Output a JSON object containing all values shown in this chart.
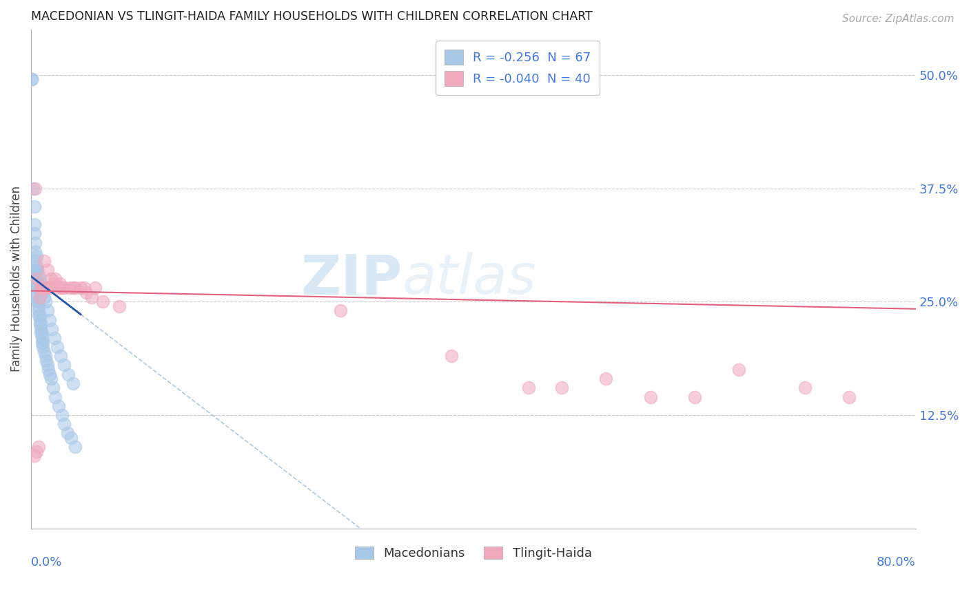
{
  "title": "MACEDONIAN VS TLINGIT-HAIDA FAMILY HOUSEHOLDS WITH CHILDREN CORRELATION CHART",
  "source": "Source: ZipAtlas.com",
  "ylabel": "Family Households with Children",
  "ytick_labels": [
    "12.5%",
    "25.0%",
    "37.5%",
    "50.0%"
  ],
  "ytick_values": [
    0.125,
    0.25,
    0.375,
    0.5
  ],
  "xlim": [
    0.0,
    0.8
  ],
  "ylim": [
    0.0,
    0.55
  ],
  "legend_label_macedonians": "Macedonians",
  "legend_label_tlingit": "Tlingit-Haida",
  "watermark_zip": "ZIP",
  "watermark_atlas": "atlas",
  "blue_color": "#a8c8e8",
  "pink_color": "#f0a8bc",
  "blue_line_color": "#2255aa",
  "pink_line_color": "#e06080",
  "dashed_line_color": "#b0c8e0",
  "mac_R": -0.256,
  "mac_N": 67,
  "tlin_R": -0.04,
  "tlin_N": 40,
  "macedonian_x": [
    0.001,
    0.002,
    0.003,
    0.003,
    0.003,
    0.004,
    0.004,
    0.004,
    0.004,
    0.005,
    0.005,
    0.005,
    0.005,
    0.006,
    0.006,
    0.006,
    0.006,
    0.007,
    0.007,
    0.007,
    0.007,
    0.008,
    0.008,
    0.008,
    0.009,
    0.009,
    0.009,
    0.01,
    0.01,
    0.01,
    0.011,
    0.011,
    0.012,
    0.013,
    0.014,
    0.015,
    0.016,
    0.017,
    0.018,
    0.02,
    0.022,
    0.025,
    0.028,
    0.03,
    0.033,
    0.036,
    0.04,
    0.005,
    0.005,
    0.006,
    0.007,
    0.008,
    0.009,
    0.01,
    0.011,
    0.012,
    0.013,
    0.015,
    0.017,
    0.019,
    0.021,
    0.024,
    0.027,
    0.03,
    0.034,
    0.038,
    0.001
  ],
  "macedonian_y": [
    0.495,
    0.375,
    0.355,
    0.335,
    0.325,
    0.315,
    0.305,
    0.295,
    0.285,
    0.285,
    0.275,
    0.27,
    0.265,
    0.265,
    0.26,
    0.255,
    0.25,
    0.25,
    0.245,
    0.24,
    0.235,
    0.235,
    0.23,
    0.225,
    0.225,
    0.22,
    0.215,
    0.215,
    0.21,
    0.205,
    0.205,
    0.2,
    0.195,
    0.19,
    0.185,
    0.18,
    0.175,
    0.17,
    0.165,
    0.155,
    0.145,
    0.135,
    0.125,
    0.115,
    0.105,
    0.1,
    0.09,
    0.3,
    0.29,
    0.285,
    0.28,
    0.275,
    0.27,
    0.265,
    0.26,
    0.255,
    0.25,
    0.24,
    0.23,
    0.22,
    0.21,
    0.2,
    0.19,
    0.18,
    0.17,
    0.16,
    0.495
  ],
  "tlingit_x": [
    0.004,
    0.006,
    0.008,
    0.01,
    0.012,
    0.015,
    0.018,
    0.02,
    0.022,
    0.026,
    0.03,
    0.035,
    0.04,
    0.045,
    0.05,
    0.055,
    0.065,
    0.08,
    0.003,
    0.005,
    0.007,
    0.009,
    0.011,
    0.014,
    0.017,
    0.025,
    0.028,
    0.038,
    0.048,
    0.058,
    0.28,
    0.38,
    0.45,
    0.48,
    0.52,
    0.56,
    0.6,
    0.64,
    0.7,
    0.74
  ],
  "tlingit_y": [
    0.375,
    0.275,
    0.255,
    0.265,
    0.295,
    0.285,
    0.275,
    0.27,
    0.275,
    0.27,
    0.265,
    0.265,
    0.265,
    0.265,
    0.26,
    0.255,
    0.25,
    0.245,
    0.08,
    0.085,
    0.09,
    0.265,
    0.265,
    0.265,
    0.265,
    0.265,
    0.265,
    0.265,
    0.265,
    0.265,
    0.24,
    0.19,
    0.155,
    0.155,
    0.165,
    0.145,
    0.145,
    0.175,
    0.155,
    0.145
  ],
  "mac_line_x0": 0.0,
  "mac_line_x1": 0.045,
  "mac_line_y0": 0.278,
  "mac_line_y1": 0.236,
  "dash_line_x0": 0.045,
  "dash_line_x1": 0.5,
  "tlin_line_x0": 0.0,
  "tlin_line_x1": 0.8,
  "tlin_line_y0": 0.262,
  "tlin_line_y1": 0.242
}
